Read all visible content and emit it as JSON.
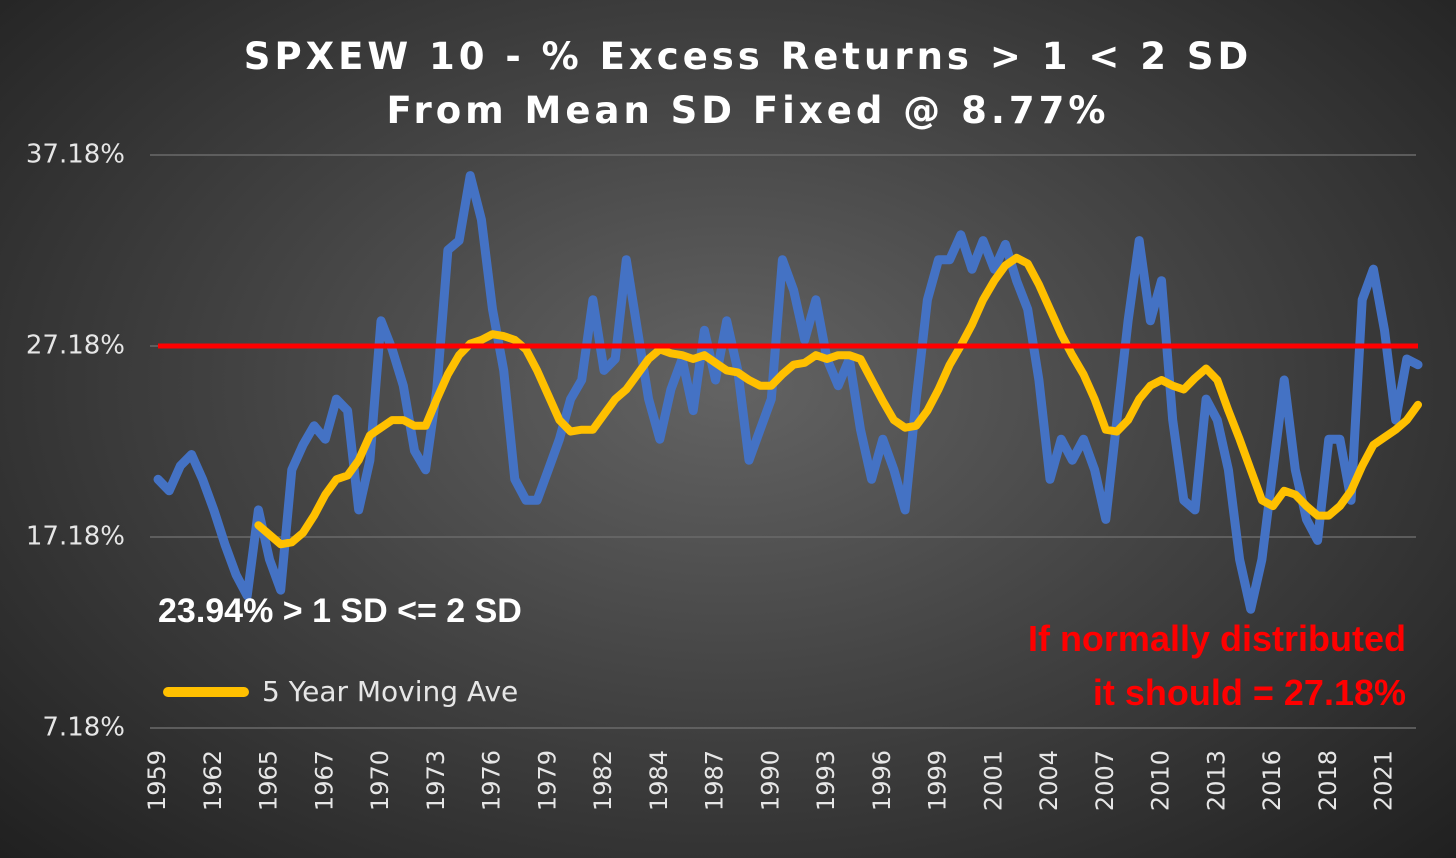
{
  "chart_data": {
    "type": "line",
    "title": "SPXEW 10 - % Excess Returns > 1 < 2 SD From Mean SD Fixed @ 8.77%",
    "categories": [
      "1959",
      null,
      null,
      null,
      null,
      "1962",
      null,
      null,
      null,
      null,
      "1965",
      null,
      null,
      null,
      null,
      "1967",
      null,
      null,
      null,
      null,
      "1970",
      null,
      null,
      null,
      null,
      "1973",
      null,
      null,
      null,
      null,
      "1976",
      null,
      null,
      null,
      null,
      "1979",
      null,
      null,
      null,
      null,
      "1982",
      null,
      null,
      null,
      null,
      "1984",
      null,
      null,
      null,
      null,
      "1987",
      null,
      null,
      null,
      null,
      "1990",
      null,
      null,
      null,
      null,
      "1993",
      null,
      null,
      null,
      null,
      "1996",
      null,
      null,
      null,
      null,
      "1999",
      null,
      null,
      null,
      null,
      "2001",
      null,
      null,
      null,
      null,
      "2004",
      null,
      null,
      null,
      null,
      "2007",
      null,
      null,
      null,
      null,
      "2010",
      null,
      null,
      null,
      null,
      "2013",
      null,
      null,
      null,
      null,
      "2016",
      null,
      null,
      null,
      null,
      "2018",
      null,
      null,
      null,
      null,
      "2021",
      null,
      null,
      null
    ],
    "series": [
      {
        "color": "#4472c4",
        "values": [
          20.2,
          19.6,
          20.9,
          21.5,
          20.2,
          18.6,
          16.8,
          15.2,
          14.1,
          18.6,
          16.0,
          14.4,
          20.7,
          22.0,
          23.0,
          22.3,
          24.4,
          23.8,
          18.6,
          21.2,
          28.5,
          27.0,
          25.1,
          21.7,
          20.7,
          24.9,
          32.2,
          32.7,
          36.1,
          33.8,
          29.1,
          25.9,
          20.2,
          19.1,
          19.1,
          20.7,
          22.3,
          24.4,
          25.4,
          29.6,
          25.9,
          26.5,
          31.7,
          28.0,
          24.4,
          22.3,
          24.9,
          26.5,
          23.8,
          28.0,
          25.4,
          28.5,
          25.9,
          21.2,
          22.8,
          24.4,
          31.7,
          30.1,
          27.5,
          29.6,
          26.5,
          25.1,
          26.5,
          22.8,
          20.2,
          22.3,
          20.7,
          18.6,
          24.4,
          29.6,
          31.7,
          31.7,
          33.0,
          31.2,
          32.7,
          31.2,
          32.5,
          30.6,
          29.1,
          25.4,
          20.2,
          22.3,
          21.2,
          22.3,
          20.7,
          18.1,
          23.3,
          28.5,
          32.7,
          28.5,
          30.6,
          23.3,
          19.1,
          18.6,
          24.4,
          23.3,
          20.7,
          16.0,
          13.4,
          16.0,
          20.7,
          25.4,
          20.7,
          18.1,
          17.0,
          22.3,
          22.3,
          19.1,
          29.6,
          31.2,
          28.0,
          23.3,
          26.5,
          26.2
        ]
      },
      {
        "name": "5 Year Moving Ave",
        "color": "#ffc000",
        "values": [
          null,
          null,
          null,
          null,
          null,
          null,
          null,
          null,
          null,
          17.8,
          17.3,
          16.8,
          16.9,
          17.4,
          18.3,
          19.4,
          20.2,
          20.4,
          21.2,
          22.5,
          22.9,
          23.3,
          23.3,
          23.0,
          23.0,
          24.4,
          25.7,
          26.7,
          27.3,
          27.5,
          27.8,
          27.7,
          27.5,
          27.0,
          25.9,
          24.6,
          23.3,
          22.7,
          22.8,
          22.8,
          23.6,
          24.4,
          24.9,
          25.7,
          26.5,
          27.0,
          26.8,
          26.7,
          26.5,
          26.7,
          26.3,
          25.9,
          25.8,
          25.4,
          25.1,
          25.1,
          25.7,
          26.2,
          26.3,
          26.7,
          26.5,
          26.7,
          26.7,
          26.5,
          25.4,
          24.3,
          23.3,
          22.9,
          23.0,
          23.8,
          24.9,
          26.2,
          27.2,
          28.3,
          29.6,
          30.6,
          31.4,
          31.8,
          31.5,
          30.4,
          29.1,
          27.8,
          26.7,
          25.7,
          24.4,
          22.8,
          22.7,
          23.3,
          24.4,
          25.1,
          25.4,
          25.1,
          24.9,
          25.5,
          26.0,
          25.4,
          23.8,
          22.3,
          20.7,
          19.1,
          18.8,
          19.6,
          19.4,
          18.8,
          18.3,
          18.3,
          18.8,
          19.6,
          20.9,
          22.0,
          22.4,
          22.8,
          23.3,
          24.1
        ]
      }
    ],
    "reference_line": {
      "value": 27.18,
      "color": "#ff0000"
    },
    "ylim": [
      7.18,
      37.18
    ],
    "yticks": [
      {
        "value": 7.18,
        "label": "7.18%"
      },
      {
        "value": 17.18,
        "label": "17.18%"
      },
      {
        "value": 27.18,
        "label": "27.18%"
      },
      {
        "value": 37.18,
        "label": "37.18%"
      }
    ],
    "grid": true,
    "legend": "lower-left",
    "annotations": [
      {
        "lines": [
          "23.94% > 1 SD <= 2 SD"
        ]
      },
      {
        "lines": [
          "If normally distributed",
          "it should = 27.18%"
        ]
      }
    ]
  }
}
